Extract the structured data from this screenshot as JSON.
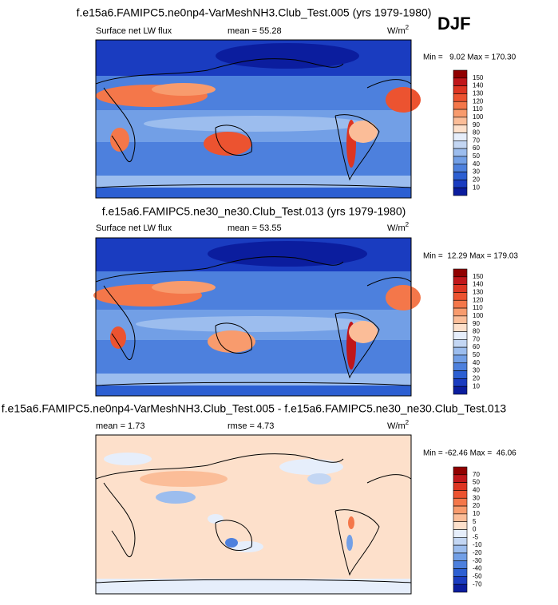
{
  "panels": [
    {
      "title": "f.e15a6.FAMIPC5.ne0np4-VarMeshNH3.Club_Test.005 (yrs 1979-1980)",
      "season": "DJF",
      "variable": "Surface net LW flux",
      "stat": "mean =  55.28",
      "units": {
        "base": "W/m",
        "sup": "2"
      },
      "minmax": "Min =   9.02 Max = 170.30",
      "colorbar": {
        "labels": [
          150,
          140,
          130,
          120,
          110,
          100,
          90,
          80,
          70,
          60,
          50,
          40,
          30,
          20,
          10
        ],
        "colors": [
          "#900000",
          "#c0161a",
          "#dd3522",
          "#ec5330",
          "#f4774a",
          "#f89b6d",
          "#fbbd98",
          "#fde0cb",
          "#e6eefb",
          "#c3d6f3",
          "#9cbdee",
          "#729fe6",
          "#4d80dd",
          "#2c5fd2",
          "#1a3cc0",
          "#0b1d9e"
        ]
      }
    },
    {
      "title": "f.e15a6.FAMIPC5.ne30_ne30.Club_Test.013 (yrs 1979-1980)",
      "variable": "Surface net LW flux",
      "stat": "mean =  53.55",
      "units": {
        "base": "W/m",
        "sup": "2"
      },
      "minmax": "Min =  12.29 Max = 179.03",
      "colorbar": {
        "labels": [
          150,
          140,
          130,
          120,
          110,
          100,
          90,
          80,
          70,
          60,
          50,
          40,
          30,
          20,
          10
        ],
        "colors": [
          "#900000",
          "#c0161a",
          "#dd3522",
          "#ec5330",
          "#f4774a",
          "#f89b6d",
          "#fbbd98",
          "#fde0cb",
          "#e6eefb",
          "#c3d6f3",
          "#9cbdee",
          "#729fe6",
          "#4d80dd",
          "#2c5fd2",
          "#1a3cc0",
          "#0b1d9e"
        ]
      }
    },
    {
      "title": "f.e15a6.FAMIPC5.ne0np4-VarMeshNH3.Club_Test.005 - f.e15a6.FAMIPC5.ne30_ne30.Club_Test.013",
      "stat": "mean =   1.73",
      "stat2": "rmse =   4.73",
      "units": {
        "base": "W/m",
        "sup": "2"
      },
      "minmax": "Min = -62.46 Max =  46.06",
      "colorbar": {
        "labels": [
          70,
          50,
          40,
          30,
          20,
          10,
          5,
          0,
          -5,
          -10,
          -20,
          -30,
          -40,
          -50,
          -70
        ],
        "colors": [
          "#900000",
          "#c0161a",
          "#dd3522",
          "#ec5330",
          "#f4774a",
          "#f89b6d",
          "#fbbd98",
          "#fde0cb",
          "#e6eefb",
          "#c3d6f3",
          "#9cbdee",
          "#729fe6",
          "#4d80dd",
          "#2c5fd2",
          "#1a3cc0",
          "#0b1d9e"
        ]
      }
    }
  ]
}
